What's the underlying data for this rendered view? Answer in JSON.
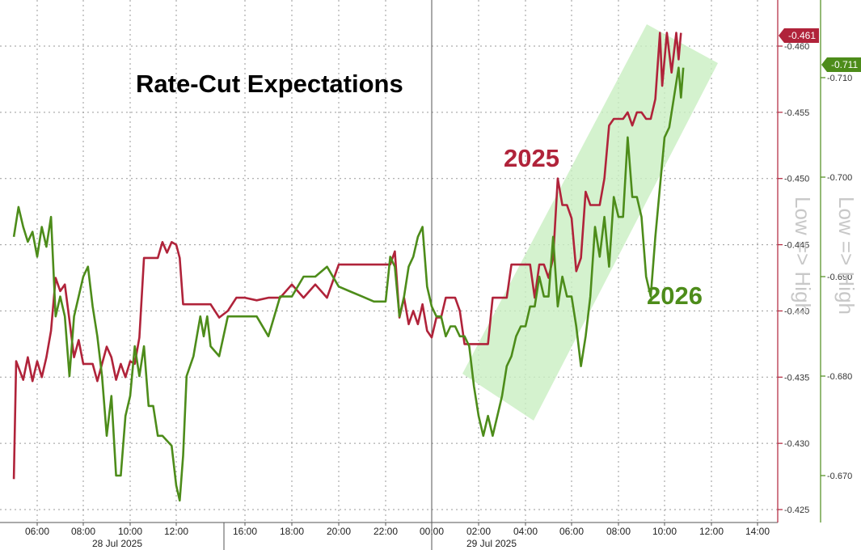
{
  "chart_data": {
    "type": "line",
    "title": "Rate-Cut Expectations",
    "annotation": "Low => High",
    "x_ticks": [
      "06:00",
      "08:00",
      "10:00",
      "12:00",
      "16:00",
      "18:00",
      "20:00",
      "22:00",
      "00:00",
      "02:00",
      "04:00",
      "06:00",
      "08:00",
      "10:00",
      "12:00",
      "14:00"
    ],
    "x_dates": [
      {
        "label": "28 Jul 2025",
        "at": "08:00"
      },
      {
        "label": "29 Jul 2025",
        "at": "02:00"
      }
    ],
    "y_left": {
      "color": "#b0233a",
      "ticks": [
        "-0.460",
        "-0.455",
        "-0.450",
        "-0.445",
        "-0.440",
        "-0.435",
        "-0.430",
        "-0.425"
      ],
      "range": [
        -0.4255,
        -0.4625
      ]
    },
    "y_right": {
      "color": "#4d8c1a",
      "ticks": [
        "-0.710",
        "-0.700",
        "-0.690",
        "-0.680",
        "-0.670"
      ],
      "range": [
        -0.6655,
        -0.7165
      ]
    },
    "trend_band": {
      "color": "#c9efc2",
      "from": "02:00",
      "to": "11:00"
    },
    "series": [
      {
        "name": "2025",
        "axis": "left",
        "color": "#b0233a",
        "last_value": "-0.461",
        "points": [
          [
            "05:00",
            -0.4273
          ],
          [
            "05:06",
            -0.4362
          ],
          [
            "05:24",
            -0.4348
          ],
          [
            "05:36",
            -0.4365
          ],
          [
            "05:48",
            -0.4347
          ],
          [
            "06:00",
            -0.4362
          ],
          [
            "06:12",
            -0.435
          ],
          [
            "06:24",
            -0.4365
          ],
          [
            "06:36",
            -0.4385
          ],
          [
            "06:48",
            -0.4425
          ],
          [
            "07:00",
            -0.4415
          ],
          [
            "07:12",
            -0.442
          ],
          [
            "07:24",
            -0.4393
          ],
          [
            "07:36",
            -0.4365
          ],
          [
            "07:48",
            -0.4378
          ],
          [
            "08:00",
            -0.436
          ],
          [
            "08:24",
            -0.436
          ],
          [
            "08:36",
            -0.4347
          ],
          [
            "08:48",
            -0.436
          ],
          [
            "09:00",
            -0.4373
          ],
          [
            "09:12",
            -0.4365
          ],
          [
            "09:24",
            -0.4348
          ],
          [
            "09:36",
            -0.436
          ],
          [
            "09:48",
            -0.435
          ],
          [
            "10:00",
            -0.4362
          ],
          [
            "10:12",
            -0.436
          ],
          [
            "10:24",
            -0.438
          ],
          [
            "10:36",
            -0.444
          ],
          [
            "10:48",
            -0.444
          ],
          [
            "11:12",
            -0.444
          ],
          [
            "11:24",
            -0.4452
          ],
          [
            "11:36",
            -0.4444
          ],
          [
            "11:48",
            -0.4452
          ],
          [
            "12:00",
            -0.445
          ],
          [
            "12:12",
            -0.444
          ],
          [
            "12:24",
            -0.4405
          ],
          [
            "13:00",
            -0.4405
          ],
          [
            "13:30",
            -0.4405
          ],
          [
            "14:00",
            -0.4405
          ],
          [
            "14:30",
            -0.4395
          ],
          [
            "15:00",
            -0.44
          ],
          [
            "15:30",
            -0.441
          ],
          [
            "16:00",
            -0.441
          ],
          [
            "16:30",
            -0.4408
          ],
          [
            "17:00",
            -0.441
          ],
          [
            "17:30",
            -0.441
          ],
          [
            "18:00",
            -0.442
          ],
          [
            "18:30",
            -0.441
          ],
          [
            "19:00",
            -0.442
          ],
          [
            "19:30",
            -0.441
          ],
          [
            "20:00",
            -0.4435
          ],
          [
            "20:30",
            -0.4435
          ],
          [
            "21:00",
            -0.4435
          ],
          [
            "21:30",
            -0.4435
          ],
          [
            "22:00",
            -0.4435
          ],
          [
            "22:12",
            -0.4435
          ],
          [
            "22:24",
            -0.4445
          ],
          [
            "22:36",
            -0.4395
          ],
          [
            "22:48",
            -0.441
          ],
          [
            "23:00",
            -0.439
          ],
          [
            "23:12",
            -0.44
          ],
          [
            "23:24",
            -0.439
          ],
          [
            "23:36",
            -0.4405
          ],
          [
            "23:48",
            -0.4385
          ],
          [
            "00:00",
            -0.438
          ],
          [
            "00:12",
            -0.4395
          ],
          [
            "00:24",
            -0.4395
          ],
          [
            "00:36",
            -0.441
          ],
          [
            "00:48",
            -0.441
          ],
          [
            "01:00",
            -0.441
          ],
          [
            "01:12",
            -0.44
          ],
          [
            "01:24",
            -0.4375
          ],
          [
            "01:36",
            -0.4375
          ],
          [
            "02:00",
            -0.4375
          ],
          [
            "02:12",
            -0.4375
          ],
          [
            "02:24",
            -0.4375
          ],
          [
            "02:36",
            -0.441
          ],
          [
            "02:48",
            -0.441
          ],
          [
            "03:00",
            -0.441
          ],
          [
            "03:12",
            -0.441
          ],
          [
            "03:24",
            -0.4435
          ],
          [
            "03:36",
            -0.4435
          ],
          [
            "03:48",
            -0.4435
          ],
          [
            "04:00",
            -0.4435
          ],
          [
            "04:12",
            -0.4435
          ],
          [
            "04:24",
            -0.441
          ],
          [
            "04:36",
            -0.4435
          ],
          [
            "04:48",
            -0.4435
          ],
          [
            "05:00",
            -0.4425
          ],
          [
            "05:12",
            -0.444
          ],
          [
            "05:24",
            -0.45
          ],
          [
            "05:36",
            -0.448
          ],
          [
            "05:48",
            -0.448
          ],
          [
            "06:00",
            -0.447
          ],
          [
            "06:12",
            -0.443
          ],
          [
            "06:24",
            -0.444
          ],
          [
            "06:36",
            -0.449
          ],
          [
            "06:48",
            -0.448
          ],
          [
            "07:00",
            -0.448
          ],
          [
            "07:12",
            -0.448
          ],
          [
            "07:24",
            -0.45
          ],
          [
            "07:36",
            -0.454
          ],
          [
            "07:48",
            -0.4545
          ],
          [
            "08:00",
            -0.4545
          ],
          [
            "08:12",
            -0.4545
          ],
          [
            "08:24",
            -0.455
          ],
          [
            "08:36",
            -0.454
          ],
          [
            "08:48",
            -0.455
          ],
          [
            "09:00",
            -0.455
          ],
          [
            "09:12",
            -0.4545
          ],
          [
            "09:24",
            -0.4545
          ],
          [
            "09:36",
            -0.456
          ],
          [
            "09:48",
            -0.461
          ],
          [
            "09:54",
            -0.457
          ],
          [
            "10:06",
            -0.461
          ],
          [
            "10:18",
            -0.458
          ],
          [
            "10:30",
            -0.461
          ],
          [
            "10:36",
            -0.459
          ],
          [
            "10:42",
            -0.461
          ]
        ]
      },
      {
        "name": "2026",
        "axis": "right",
        "color": "#4d8c1a",
        "last_value": "-0.711",
        "points": [
          [
            "05:00",
            -0.694
          ],
          [
            "05:12",
            -0.697
          ],
          [
            "05:24",
            -0.695
          ],
          [
            "05:36",
            -0.6935
          ],
          [
            "05:48",
            -0.6945
          ],
          [
            "06:00",
            -0.692
          ],
          [
            "06:12",
            -0.695
          ],
          [
            "06:24",
            -0.693
          ],
          [
            "06:36",
            -0.696
          ],
          [
            "06:48",
            -0.686
          ],
          [
            "07:00",
            -0.688
          ],
          [
            "07:12",
            -0.686
          ],
          [
            "07:24",
            -0.68
          ],
          [
            "07:36",
            -0.686
          ],
          [
            "07:48",
            -0.688
          ],
          [
            "08:00",
            -0.69
          ],
          [
            "08:12",
            -0.691
          ],
          [
            "08:24",
            -0.687
          ],
          [
            "08:36",
            -0.684
          ],
          [
            "08:48",
            -0.68
          ],
          [
            "09:00",
            -0.674
          ],
          [
            "09:12",
            -0.678
          ],
          [
            "09:24",
            -0.67
          ],
          [
            "09:36",
            -0.67
          ],
          [
            "09:48",
            -0.676
          ],
          [
            "10:00",
            -0.678
          ],
          [
            "10:12",
            -0.683
          ],
          [
            "10:24",
            -0.68
          ],
          [
            "10:36",
            -0.683
          ],
          [
            "10:48",
            -0.677
          ],
          [
            "11:00",
            -0.677
          ],
          [
            "11:12",
            -0.674
          ],
          [
            "11:24",
            -0.674
          ],
          [
            "11:48",
            -0.673
          ],
          [
            "12:00",
            -0.669
          ],
          [
            "12:12",
            -0.6675
          ],
          [
            "12:24",
            -0.672
          ],
          [
            "12:36",
            -0.68
          ],
          [
            "13:00",
            -0.682
          ],
          [
            "13:12",
            -0.684
          ],
          [
            "13:24",
            -0.686
          ],
          [
            "13:36",
            -0.684
          ],
          [
            "13:48",
            -0.686
          ],
          [
            "14:00",
            -0.683
          ],
          [
            "14:30",
            -0.682
          ],
          [
            "15:00",
            -0.686
          ],
          [
            "15:30",
            -0.686
          ],
          [
            "16:00",
            -0.686
          ],
          [
            "16:30",
            -0.686
          ],
          [
            "17:00",
            -0.684
          ],
          [
            "17:30",
            -0.688
          ],
          [
            "18:00",
            -0.688
          ],
          [
            "18:30",
            -0.69
          ],
          [
            "19:00",
            -0.69
          ],
          [
            "19:30",
            -0.691
          ],
          [
            "20:00",
            -0.689
          ],
          [
            "20:30",
            -0.6885
          ],
          [
            "21:00",
            -0.688
          ],
          [
            "21:30",
            -0.6875
          ],
          [
            "22:00",
            -0.6875
          ],
          [
            "22:12",
            -0.692
          ],
          [
            "22:24",
            -0.691
          ],
          [
            "22:36",
            -0.686
          ],
          [
            "22:48",
            -0.688
          ],
          [
            "23:00",
            -0.691
          ],
          [
            "23:12",
            -0.692
          ],
          [
            "23:24",
            -0.694
          ],
          [
            "23:36",
            -0.695
          ],
          [
            "23:48",
            -0.689
          ],
          [
            "00:00",
            -0.687
          ],
          [
            "00:12",
            -0.686
          ],
          [
            "00:24",
            -0.686
          ],
          [
            "00:36",
            -0.684
          ],
          [
            "00:48",
            -0.685
          ],
          [
            "01:00",
            -0.685
          ],
          [
            "01:12",
            -0.684
          ],
          [
            "01:24",
            -0.684
          ],
          [
            "01:36",
            -0.683
          ],
          [
            "01:48",
            -0.679
          ],
          [
            "02:00",
            -0.676
          ],
          [
            "02:12",
            -0.674
          ],
          [
            "02:24",
            -0.676
          ],
          [
            "02:36",
            -0.674
          ],
          [
            "02:48",
            -0.676
          ],
          [
            "03:00",
            -0.678
          ],
          [
            "03:12",
            -0.681
          ],
          [
            "03:24",
            -0.682
          ],
          [
            "03:36",
            -0.684
          ],
          [
            "03:48",
            -0.685
          ],
          [
            "04:00",
            -0.685
          ],
          [
            "04:12",
            -0.687
          ],
          [
            "04:24",
            -0.687
          ],
          [
            "04:36",
            -0.69
          ],
          [
            "04:48",
            -0.688
          ],
          [
            "05:00",
            -0.688
          ],
          [
            "05:12",
            -0.694
          ],
          [
            "05:24",
            -0.687
          ],
          [
            "05:36",
            -0.69
          ],
          [
            "05:48",
            -0.688
          ],
          [
            "06:00",
            -0.688
          ],
          [
            "06:12",
            -0.685
          ],
          [
            "06:24",
            -0.681
          ],
          [
            "06:36",
            -0.684
          ],
          [
            "06:48",
            -0.688
          ],
          [
            "07:00",
            -0.695
          ],
          [
            "07:12",
            -0.692
          ],
          [
            "07:24",
            -0.696
          ],
          [
            "07:36",
            -0.691
          ],
          [
            "07:48",
            -0.698
          ],
          [
            "08:00",
            -0.696
          ],
          [
            "08:12",
            -0.696
          ],
          [
            "08:24",
            -0.704
          ],
          [
            "08:36",
            -0.698
          ],
          [
            "08:48",
            -0.698
          ],
          [
            "09:00",
            -0.696
          ],
          [
            "09:12",
            -0.69
          ],
          [
            "09:24",
            -0.688
          ],
          [
            "09:36",
            -0.694
          ],
          [
            "09:48",
            -0.699
          ],
          [
            "10:00",
            -0.704
          ],
          [
            "10:12",
            -0.705
          ],
          [
            "10:24",
            -0.708
          ],
          [
            "10:36",
            -0.711
          ],
          [
            "10:42",
            -0.708
          ],
          [
            "10:48",
            -0.711
          ]
        ]
      }
    ]
  }
}
